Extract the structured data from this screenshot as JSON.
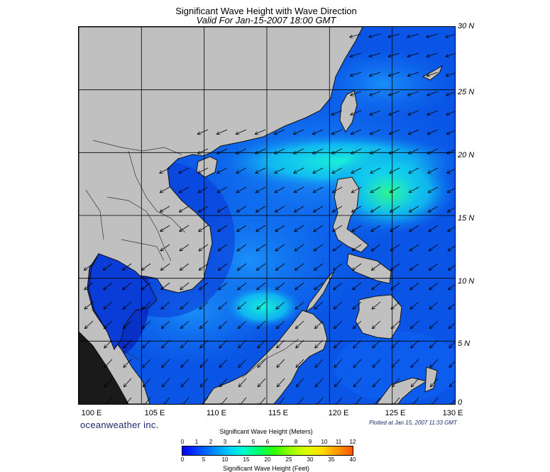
{
  "header": {
    "title": "Significant Wave Height with Wave Direction",
    "subtitle": "Valid For Jan-15-2007 18:00 GMT"
  },
  "map": {
    "lon_range": [
      100,
      130
    ],
    "lat_range": [
      0,
      30
    ],
    "lat_labels": [
      "30 N",
      "25 N",
      "20 N",
      "15 N",
      "10 N",
      "5 N",
      "0"
    ],
    "lon_labels": [
      "100 E",
      "105 E",
      "110 E",
      "115 E",
      "120 E",
      "125 E",
      "130 E"
    ],
    "land_color": "#c0c0c0",
    "sea_base_color": "#0a55e6",
    "arrow_direction": "toward southwest (northeast monsoon)"
  },
  "footer": {
    "brand": "oceanweather inc.",
    "plotted": "Plotted at Jan 15, 2007 11:33 GMT"
  },
  "legend": {
    "meters_title": "Significant Wave Height (Meters)",
    "feet_title": "Significant Wave Height (Feet)",
    "meters_ticks": [
      "0",
      "1",
      "2",
      "3",
      "4",
      "5",
      "6",
      "7",
      "8",
      "9",
      "10",
      "11",
      "12"
    ],
    "feet_ticks": [
      "0",
      "5",
      "10",
      "15",
      "20",
      "25",
      "30",
      "35",
      "40"
    ],
    "colors": [
      "#0000ff",
      "#0044ff",
      "#0088ff",
      "#00ccff",
      "#00ffcc",
      "#00ff66",
      "#33ff00",
      "#99ff00",
      "#ddff00",
      "#ffdd00",
      "#ff9900",
      "#ff5500"
    ]
  }
}
